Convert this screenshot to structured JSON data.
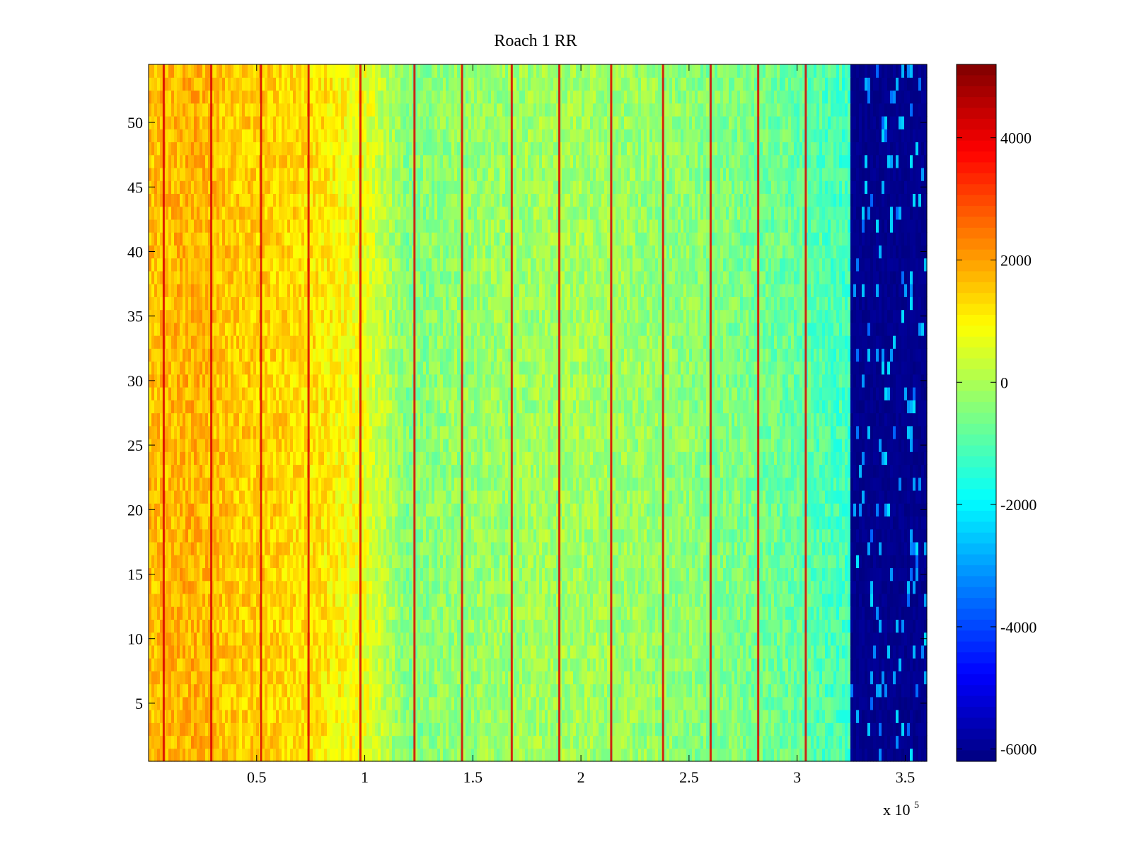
{
  "chart_data": {
    "type": "heatmap",
    "title": "Roach 1 RR",
    "xlabel": "",
    "ylabel": "",
    "x_exponent_label": {
      "base": "x 10",
      "exponent": "5"
    },
    "xlim": [
      0,
      3.6
    ],
    "ylim": [
      0.5,
      54.5
    ],
    "x_ticks": [
      {
        "value": 0.5,
        "label": "0.5"
      },
      {
        "value": 1,
        "label": "1"
      },
      {
        "value": 1.5,
        "label": "1.5"
      },
      {
        "value": 2,
        "label": "2"
      },
      {
        "value": 2.5,
        "label": "2.5"
      },
      {
        "value": 3,
        "label": "3"
      },
      {
        "value": 3.5,
        "label": "3.5"
      }
    ],
    "y_ticks": [
      {
        "value": 5,
        "label": "5"
      },
      {
        "value": 10,
        "label": "10"
      },
      {
        "value": 15,
        "label": "15"
      },
      {
        "value": 20,
        "label": "20"
      },
      {
        "value": 25,
        "label": "25"
      },
      {
        "value": 30,
        "label": "30"
      },
      {
        "value": 35,
        "label": "35"
      },
      {
        "value": 40,
        "label": "40"
      },
      {
        "value": 45,
        "label": "45"
      },
      {
        "value": 50,
        "label": "50"
      }
    ],
    "colorbar": {
      "colormap": "jet",
      "range": [
        -6200,
        5200
      ],
      "ticks": [
        {
          "value": 4000,
          "label": "4000"
        },
        {
          "value": 2000,
          "label": "2000"
        },
        {
          "value": 0,
          "label": "0"
        },
        {
          "value": -2000,
          "label": "-2000"
        },
        {
          "value": -4000,
          "label": "-4000"
        },
        {
          "value": -6000,
          "label": "-6000"
        }
      ]
    },
    "profile_x": [
      0.0,
      0.2,
      0.4,
      0.6,
      0.8,
      1.0,
      1.1,
      1.2,
      1.4,
      1.6,
      2.0,
      2.4,
      2.8,
      3.0,
      3.1,
      3.25
    ],
    "profile_values": [
      1600,
      1800,
      1500,
      1400,
      1200,
      700,
      100,
      -500,
      -300,
      -200,
      -100,
      -300,
      -600,
      -800,
      -1000,
      -1200
    ],
    "saturated_region": {
      "x_start": 3.25,
      "x_end": 3.6,
      "value": -6200
    },
    "red_streaks_x": [
      0.07,
      0.29,
      0.52,
      0.74,
      0.98,
      1.23,
      1.45,
      1.68,
      1.9,
      2.14,
      2.38,
      2.6,
      2.82,
      3.04
    ],
    "grid": false,
    "legend": "colorbar-right"
  }
}
